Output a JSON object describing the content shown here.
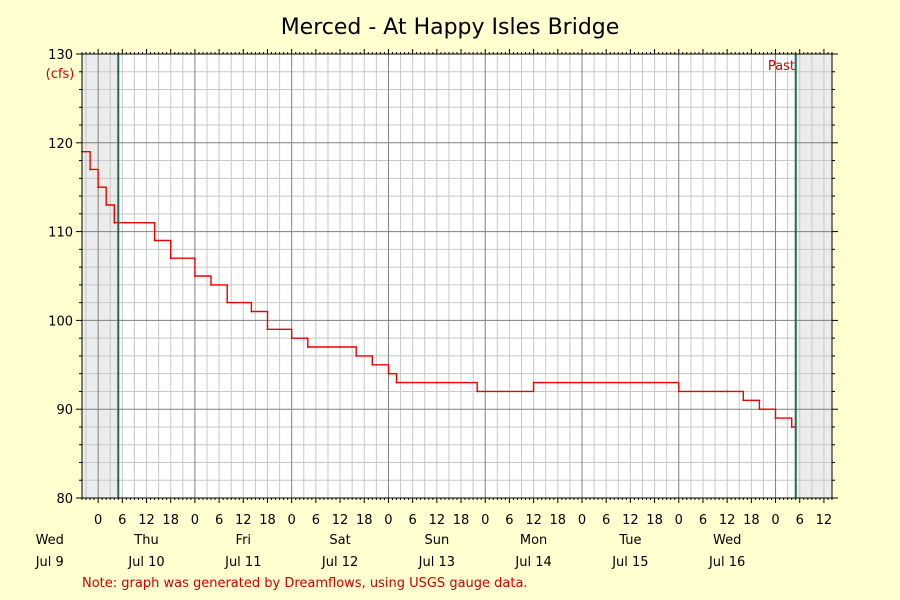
{
  "chart_data": {
    "type": "line",
    "title": "Merced - At Happy Isles Bridge",
    "ylabel": "(cfs)",
    "ylim": [
      80,
      130
    ],
    "y_ticks": [
      80,
      90,
      100,
      110,
      120,
      130
    ],
    "x_range_hours": [
      "Jul 8 20:00",
      "Jul 16 14:00"
    ],
    "x_tick_labels": [
      "0",
      "6",
      "12",
      "18",
      "0",
      "6",
      "12",
      "18",
      "0",
      "6",
      "12",
      "18",
      "0",
      "6",
      "12",
      "18",
      "0",
      "6",
      "12",
      "18",
      "0",
      "6",
      "12",
      "18",
      "0",
      "6",
      "12",
      "18",
      "0",
      "6",
      "12",
      "18",
      "0",
      "6",
      "12"
    ],
    "days": [
      {
        "weekday": "Wed",
        "date": "Jul 9"
      },
      {
        "weekday": "Thu",
        "date": "Jul 10"
      },
      {
        "weekday": "Fri",
        "date": "Jul 11"
      },
      {
        "weekday": "Sat",
        "date": "Jul 12"
      },
      {
        "weekday": "Sun",
        "date": "Jul 13"
      },
      {
        "weekday": "Mon",
        "date": "Jul 14"
      },
      {
        "weekday": "Tue",
        "date": "Jul 15"
      },
      {
        "weekday": "Wed",
        "date": "Jul 16"
      }
    ],
    "grid": true,
    "marker_label": "Past",
    "vertical_markers": [
      "Jul 9 05:00",
      "Jul 16 05:00"
    ],
    "series": [
      {
        "color": "#ee0000",
        "points": [
          [
            "Jul 8 20:00",
            119
          ],
          [
            "Jul 8 22:00",
            117
          ],
          [
            "Jul 9 00:00",
            115
          ],
          [
            "Jul 9 02:00",
            113
          ],
          [
            "Jul 9 04:00",
            111
          ],
          [
            "Jul 9 12:00",
            111
          ],
          [
            "Jul 9 14:00",
            109
          ],
          [
            "Jul 9 18:00",
            107
          ],
          [
            "Jul 10 00:00",
            105
          ],
          [
            "Jul 10 04:00",
            104
          ],
          [
            "Jul 10 08:00",
            102
          ],
          [
            "Jul 10 14:00",
            101
          ],
          [
            "Jul 10 18:00",
            99
          ],
          [
            "Jul 11 00:00",
            98
          ],
          [
            "Jul 11 04:00",
            97
          ],
          [
            "Jul 11 12:00",
            97
          ],
          [
            "Jul 11 16:00",
            96
          ],
          [
            "Jul 11 20:00",
            95
          ],
          [
            "Jul 12 00:00",
            94
          ],
          [
            "Jul 12 02:00",
            93
          ],
          [
            "Jul 12 12:00",
            93
          ],
          [
            "Jul 12 22:00",
            92
          ],
          [
            "Jul 13 04:00",
            92
          ],
          [
            "Jul 13 12:00",
            93
          ],
          [
            "Jul 13 18:00",
            93
          ],
          [
            "Jul 14 00:00",
            93
          ],
          [
            "Jul 14 12:00",
            93
          ],
          [
            "Jul 14 18:00",
            93
          ],
          [
            "Jul 15 00:00",
            92
          ],
          [
            "Jul 15 12:00",
            92
          ],
          [
            "Jul 15 16:00",
            91
          ],
          [
            "Jul 15 20:00",
            90
          ],
          [
            "Jul 16 00:00",
            89
          ],
          [
            "Jul 16 04:00",
            88
          ]
        ]
      }
    ],
    "note": "Note: graph was generated by Dreamflows, using USGS gauge data."
  }
}
